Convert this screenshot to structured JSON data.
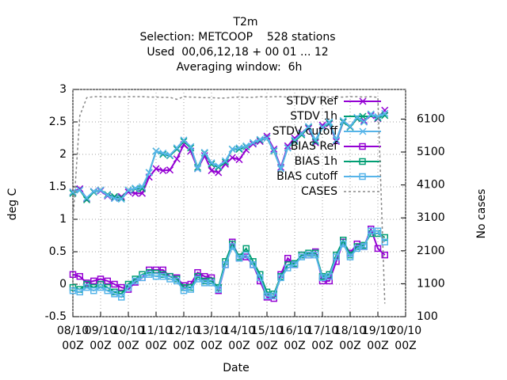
{
  "chart_data": {
    "type": "line",
    "title_lines": [
      "T2m",
      "Selection: METCOOP    528 stations",
      "Used  00,06,12,18 + 00 01 ... 12",
      "Averaging window:  6h"
    ],
    "x_label": "Date",
    "y_label": "deg C",
    "y2_label": "No cases",
    "xlim": [
      0,
      12
    ],
    "ylim": [
      -0.5,
      3
    ],
    "y2lim": [
      100,
      7000
    ],
    "xticks": [
      {
        "value": 0,
        "label": "08/10"
      },
      {
        "value": 1,
        "label": "09/10"
      },
      {
        "value": 2,
        "label": "10/10"
      },
      {
        "value": 3,
        "label": "11/10"
      },
      {
        "value": 4,
        "label": "12/10"
      },
      {
        "value": 5,
        "label": "13/10"
      },
      {
        "value": 6,
        "label": "14/10"
      },
      {
        "value": 7,
        "label": "15/10"
      },
      {
        "value": 8,
        "label": "16/10"
      },
      {
        "value": 9,
        "label": "17/10"
      },
      {
        "value": 10,
        "label": "18/10"
      },
      {
        "value": 11,
        "label": "19/10"
      },
      {
        "value": 12,
        "label": "20/10"
      }
    ],
    "xtick_suffix": "00Z",
    "yticks": [
      -0.5,
      0,
      0.5,
      1,
      1.5,
      2,
      2.5,
      3
    ],
    "y2ticks": [
      100,
      1100,
      2100,
      3100,
      4100,
      5100,
      6100
    ],
    "grid": true,
    "x": [
      0,
      0.25,
      0.5,
      0.75,
      1,
      1.25,
      1.5,
      1.75,
      2,
      2.25,
      2.5,
      2.75,
      3,
      3.25,
      3.5,
      3.75,
      4,
      4.25,
      4.5,
      4.75,
      5,
      5.25,
      5.5,
      5.75,
      6,
      6.25,
      6.5,
      6.75,
      7,
      7.25,
      7.5,
      7.75,
      8,
      8.25,
      8.5,
      8.75,
      9,
      9.25,
      9.5,
      9.75,
      10,
      10.25,
      10.5,
      10.75,
      11,
      11.25
    ],
    "series": [
      {
        "name": "STDV Ref",
        "color": "#9400d3",
        "marker": "cross",
        "values": [
          1.42,
          1.47,
          1.32,
          1.43,
          1.44,
          1.36,
          1.33,
          1.35,
          1.42,
          1.4,
          1.4,
          1.65,
          1.78,
          1.75,
          1.76,
          1.93,
          2.15,
          2.05,
          1.78,
          1.98,
          1.75,
          1.72,
          1.85,
          1.95,
          1.92,
          2.07,
          2.16,
          2.2,
          2.28,
          2.08,
          1.8,
          2.13,
          2.25,
          2.33,
          2.4,
          2.18,
          2.45,
          2.47,
          2.2,
          2.5,
          2.43,
          2.55,
          2.52,
          2.6,
          2.55,
          2.68
        ]
      },
      {
        "name": "STDV 1h",
        "color": "#009e73",
        "marker": "cross",
        "values": [
          1.4,
          1.45,
          1.3,
          1.42,
          1.45,
          1.38,
          1.35,
          1.33,
          1.45,
          1.47,
          1.47,
          1.72,
          2.05,
          2.0,
          1.98,
          2.08,
          2.2,
          2.1,
          1.8,
          2.02,
          1.85,
          1.8,
          1.88,
          2.08,
          2.08,
          2.12,
          2.18,
          2.22,
          2.25,
          2.05,
          1.78,
          2.1,
          2.2,
          2.3,
          2.42,
          2.2,
          2.42,
          2.48,
          2.22,
          2.5,
          2.42,
          2.55,
          2.5,
          2.62,
          2.56,
          2.6
        ]
      },
      {
        "name": "STDV cutoff",
        "color": "#56b4e9",
        "marker": "cross",
        "values": [
          1.42,
          1.45,
          1.33,
          1.43,
          1.45,
          1.37,
          1.32,
          1.31,
          1.45,
          1.48,
          1.5,
          1.72,
          2.05,
          2.02,
          1.99,
          2.1,
          2.22,
          2.12,
          1.78,
          2.03,
          1.87,
          1.82,
          1.9,
          2.08,
          2.1,
          2.13,
          2.18,
          2.23,
          2.25,
          2.06,
          1.78,
          2.1,
          2.22,
          2.32,
          2.43,
          2.22,
          2.42,
          2.5,
          2.22,
          2.52,
          2.43,
          2.57,
          2.5,
          2.62,
          2.58,
          2.63
        ]
      },
      {
        "name": "BIAS Ref",
        "color": "#9400d3",
        "marker": "square",
        "values": [
          0.15,
          0.12,
          0.02,
          0.05,
          0.08,
          0.05,
          0.0,
          -0.05,
          -0.08,
          0.03,
          0.1,
          0.22,
          0.22,
          0.22,
          0.12,
          0.1,
          -0.02,
          0.0,
          0.18,
          0.12,
          0.1,
          -0.1,
          0.3,
          0.65,
          0.4,
          0.42,
          0.3,
          0.05,
          -0.2,
          -0.22,
          0.15,
          0.4,
          0.3,
          0.45,
          0.45,
          0.5,
          0.05,
          0.05,
          0.35,
          0.65,
          0.48,
          0.62,
          0.58,
          0.85,
          0.55,
          0.45
        ]
      },
      {
        "name": "BIAS 1h",
        "color": "#009e73",
        "marker": "square",
        "values": [
          -0.05,
          -0.08,
          0.0,
          -0.05,
          0.0,
          -0.05,
          -0.12,
          -0.15,
          0.0,
          0.08,
          0.15,
          0.18,
          0.17,
          0.15,
          0.12,
          0.08,
          -0.05,
          -0.05,
          0.12,
          0.05,
          0.05,
          -0.05,
          0.35,
          0.62,
          0.42,
          0.55,
          0.35,
          0.15,
          -0.12,
          -0.15,
          0.12,
          0.3,
          0.32,
          0.45,
          0.48,
          0.48,
          0.12,
          0.15,
          0.45,
          0.68,
          0.45,
          0.58,
          0.6,
          0.78,
          0.78,
          0.72
        ]
      },
      {
        "name": "BIAS cutoff",
        "color": "#56b4e9",
        "marker": "square",
        "values": [
          -0.1,
          -0.12,
          -0.05,
          -0.1,
          -0.05,
          -0.1,
          -0.15,
          -0.2,
          -0.05,
          0.05,
          0.1,
          0.15,
          0.12,
          0.12,
          0.08,
          0.05,
          -0.1,
          -0.08,
          0.08,
          0.02,
          0.02,
          -0.08,
          0.3,
          0.58,
          0.4,
          0.45,
          0.3,
          0.1,
          -0.18,
          -0.18,
          0.1,
          0.25,
          0.3,
          0.42,
          0.45,
          0.45,
          0.1,
          0.12,
          0.42,
          0.62,
          0.42,
          0.55,
          0.58,
          0.82,
          0.82,
          0.65
        ]
      },
      {
        "name": "CASES",
        "color": "#888888",
        "marker": "none",
        "dashed": true,
        "axis": "y2",
        "values": [
          3000,
          6200,
          6750,
          6780,
          6780,
          6770,
          6780,
          6770,
          6780,
          6780,
          6780,
          6770,
          6770,
          6760,
          6760,
          6700,
          6780,
          6770,
          6760,
          6750,
          6750,
          6740,
          6740,
          6760,
          6770,
          6760,
          6760,
          6780,
          6770,
          6780,
          6780,
          6770,
          6770,
          6780,
          6760,
          6760,
          6780,
          6770,
          6770,
          6770,
          6780,
          6780,
          6770,
          6780,
          6760,
          500
        ]
      }
    ]
  }
}
